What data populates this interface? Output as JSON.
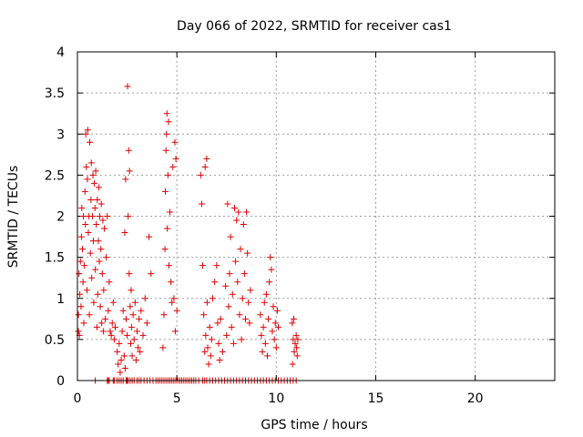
{
  "chart_data": {
    "type": "scatter",
    "title": "Day 066 of 2022, SRMTID for receiver cas1",
    "xlabel": "GPS time / hours",
    "ylabel": "SRMTID / TECUs",
    "xlim": [
      0,
      24
    ],
    "ylim": [
      0,
      4
    ],
    "xticks": [
      0,
      5,
      10,
      15,
      20
    ],
    "yticks": [
      0,
      0.5,
      1,
      1.5,
      2,
      2.5,
      3,
      3.5,
      4
    ],
    "ytick_labels": [
      "0",
      "0.5",
      "1",
      "1.5",
      "2",
      "2.5",
      "3",
      "3.5",
      "4"
    ],
    "grid": true,
    "marker": "+",
    "color": "#e00000",
    "series": [
      {
        "name": "SRMTID",
        "points": [
          [
            0.05,
            0.6
          ],
          [
            0.05,
            0.8
          ],
          [
            0.08,
            1.3
          ],
          [
            0.1,
            0.55
          ],
          [
            0.12,
            1.05
          ],
          [
            0.15,
            1.45
          ],
          [
            0.18,
            0.9
          ],
          [
            0.2,
            1.75
          ],
          [
            0.22,
            2.1
          ],
          [
            0.25,
            1.6
          ],
          [
            0.28,
            1.2
          ],
          [
            0.3,
            2.0
          ],
          [
            0.32,
            0.7
          ],
          [
            0.35,
            1.4
          ],
          [
            0.38,
            2.3
          ],
          [
            0.4,
            1.9
          ],
          [
            0.42,
            3.0
          ],
          [
            0.45,
            2.6
          ],
          [
            0.48,
            1.1
          ],
          [
            0.5,
            2.45
          ],
          [
            0.52,
            3.05
          ],
          [
            0.55,
            1.8
          ],
          [
            0.58,
            2.0
          ],
          [
            0.6,
            0.8
          ],
          [
            0.62,
            2.9
          ],
          [
            0.65,
            1.55
          ],
          [
            0.68,
            2.2
          ],
          [
            0.7,
            2.65
          ],
          [
            0.72,
            1.25
          ],
          [
            0.75,
            2.0
          ],
          [
            0.78,
            2.5
          ],
          [
            0.8,
            1.7
          ],
          [
            0.82,
            0.95
          ],
          [
            0.85,
            2.4
          ],
          [
            0.88,
            2.1
          ],
          [
            0.9,
            1.35
          ],
          [
            0.92,
            2.55
          ],
          [
            0.95,
            1.9
          ],
          [
            0.98,
            0.65
          ],
          [
            1.0,
            2.2
          ],
          [
            1.02,
            1.05
          ],
          [
            1.05,
            1.7
          ],
          [
            1.08,
            2.35
          ],
          [
            1.1,
            1.45
          ],
          [
            1.12,
            2.0
          ],
          [
            1.15,
            0.9
          ],
          [
            1.18,
            1.6
          ],
          [
            1.2,
            2.15
          ],
          [
            1.22,
            0.7
          ],
          [
            1.25,
            1.3
          ],
          [
            1.28,
            1.95
          ],
          [
            1.3,
            0.6
          ],
          [
            1.32,
            1.1
          ],
          [
            1.35,
            1.85
          ],
          [
            1.4,
            0.75
          ],
          [
            1.45,
            1.5
          ],
          [
            1.5,
            2.0
          ],
          [
            1.55,
            0.85
          ],
          [
            1.6,
            1.2
          ],
          [
            1.65,
            0.6
          ],
          [
            1.7,
            0.55
          ],
          [
            1.75,
            0.7
          ],
          [
            1.8,
            0.95
          ],
          [
            1.85,
            0.5
          ],
          [
            1.9,
            0.65
          ],
          [
            2.0,
            0.35
          ],
          [
            2.05,
            0.2
          ],
          [
            2.1,
            0.45
          ],
          [
            2.15,
            0.1
          ],
          [
            2.2,
            0.25
          ],
          [
            2.25,
            0.6
          ],
          [
            2.3,
            0.85
          ],
          [
            2.35,
            0.3
          ],
          [
            2.38,
            1.8
          ],
          [
            2.4,
            0.15
          ],
          [
            2.42,
            2.45
          ],
          [
            2.45,
            0.75
          ],
          [
            2.5,
            0.55
          ],
          [
            2.52,
            3.58
          ],
          [
            2.55,
            2.0
          ],
          [
            2.58,
            2.8
          ],
          [
            2.6,
            1.3
          ],
          [
            2.62,
            2.55
          ],
          [
            2.65,
            0.9
          ],
          [
            2.68,
            0.45
          ],
          [
            2.7,
            1.1
          ],
          [
            2.72,
            0.65
          ],
          [
            2.75,
            0.3
          ],
          [
            2.8,
            0.8
          ],
          [
            2.85,
            0.5
          ],
          [
            2.9,
            0.95
          ],
          [
            2.95,
            0.25
          ],
          [
            3.0,
            0.6
          ],
          [
            3.05,
            0.4
          ],
          [
            3.1,
            0.75
          ],
          [
            3.15,
            0.35
          ],
          [
            3.2,
            0.85
          ],
          [
            3.3,
            0.55
          ],
          [
            3.4,
            1.0
          ],
          [
            3.5,
            0.7
          ],
          [
            3.6,
            1.75
          ],
          [
            3.7,
            1.3
          ],
          [
            4.3,
            0.4
          ],
          [
            4.35,
            0.8
          ],
          [
            4.4,
            1.6
          ],
          [
            4.42,
            2.3
          ],
          [
            4.45,
            2.8
          ],
          [
            4.48,
            3.0
          ],
          [
            4.5,
            3.25
          ],
          [
            4.52,
            1.85
          ],
          [
            4.55,
            2.5
          ],
          [
            4.58,
            3.15
          ],
          [
            4.6,
            1.4
          ],
          [
            4.65,
            2.05
          ],
          [
            4.7,
            1.2
          ],
          [
            4.75,
            0.95
          ],
          [
            4.8,
            2.6
          ],
          [
            4.85,
            1.0
          ],
          [
            4.9,
            2.9
          ],
          [
            4.92,
            0.6
          ],
          [
            4.95,
            2.7
          ],
          [
            5.0,
            0.85
          ],
          [
            6.2,
            2.5
          ],
          [
            6.25,
            2.15
          ],
          [
            6.3,
            1.4
          ],
          [
            6.35,
            0.8
          ],
          [
            6.4,
            0.35
          ],
          [
            6.42,
            2.6
          ],
          [
            6.45,
            0.55
          ],
          [
            6.5,
            2.7
          ],
          [
            6.52,
            0.95
          ],
          [
            6.55,
            0.4
          ],
          [
            6.6,
            0.2
          ],
          [
            6.65,
            0.65
          ],
          [
            6.7,
            0.3
          ],
          [
            6.75,
            0.5
          ],
          [
            6.8,
            1.0
          ],
          [
            6.9,
            1.2
          ],
          [
            7.0,
            1.4
          ],
          [
            7.05,
            0.7
          ],
          [
            7.1,
            0.45
          ],
          [
            7.15,
            0.25
          ],
          [
            7.2,
            0.75
          ],
          [
            7.3,
            0.35
          ],
          [
            7.45,
            1.15
          ],
          [
            7.5,
            0.55
          ],
          [
            7.55,
            2.15
          ],
          [
            7.6,
            0.9
          ],
          [
            7.65,
            1.3
          ],
          [
            7.7,
            1.75
          ],
          [
            7.75,
            0.65
          ],
          [
            7.8,
            1.05
          ],
          [
            7.85,
            0.45
          ],
          [
            7.9,
            2.1
          ],
          [
            7.95,
            1.45
          ],
          [
            8.0,
            1.95
          ],
          [
            8.05,
            1.2
          ],
          [
            8.1,
            2.05
          ],
          [
            8.15,
            0.8
          ],
          [
            8.2,
            1.6
          ],
          [
            8.25,
            0.5
          ],
          [
            8.3,
            1.0
          ],
          [
            8.35,
            1.9
          ],
          [
            8.4,
            1.3
          ],
          [
            8.45,
            0.75
          ],
          [
            8.5,
            2.05
          ],
          [
            8.55,
            1.55
          ],
          [
            8.6,
            0.95
          ],
          [
            8.65,
            0.7
          ],
          [
            8.7,
            1.1
          ],
          [
            9.2,
            0.8
          ],
          [
            9.25,
            0.55
          ],
          [
            9.3,
            0.35
          ],
          [
            9.35,
            0.65
          ],
          [
            9.4,
            0.95
          ],
          [
            9.45,
            0.45
          ],
          [
            9.5,
            1.05
          ],
          [
            9.55,
            0.3
          ],
          [
            9.6,
            0.75
          ],
          [
            9.65,
            1.2
          ],
          [
            9.7,
            1.5
          ],
          [
            9.75,
            1.35
          ],
          [
            9.8,
            0.6
          ],
          [
            9.85,
            0.9
          ],
          [
            9.9,
            0.5
          ],
          [
            9.95,
            0.7
          ],
          [
            10.0,
            0.4
          ],
          [
            10.05,
            0.85
          ],
          [
            10.1,
            0.65
          ],
          [
            10.8,
            0.7
          ],
          [
            10.82,
            0.2
          ],
          [
            10.85,
            0.5
          ],
          [
            10.88,
            0.75
          ],
          [
            10.9,
            0.35
          ],
          [
            10.95,
            0.45
          ],
          [
            11.0,
            0.55
          ],
          [
            11.02,
            0.4
          ],
          [
            11.05,
            0.3
          ],
          [
            11.08,
            0.5
          ],
          [
            0.9,
            0.0
          ],
          [
            1.5,
            0.0
          ],
          [
            1.55,
            0.0
          ],
          [
            1.6,
            0.0
          ],
          [
            1.8,
            0.0
          ],
          [
            1.85,
            0.0
          ],
          [
            2.0,
            0.0
          ],
          [
            2.1,
            0.0
          ],
          [
            2.2,
            0.0
          ],
          [
            2.3,
            0.0
          ],
          [
            2.45,
            0.0
          ],
          [
            2.5,
            0.0
          ],
          [
            2.55,
            0.0
          ],
          [
            2.65,
            0.0
          ],
          [
            2.75,
            0.0
          ],
          [
            2.85,
            0.0
          ],
          [
            3.0,
            0.0
          ],
          [
            3.1,
            0.0
          ],
          [
            3.2,
            0.0
          ],
          [
            3.35,
            0.0
          ],
          [
            3.5,
            0.0
          ],
          [
            3.65,
            0.0
          ],
          [
            3.8,
            0.0
          ],
          [
            3.95,
            0.0
          ],
          [
            4.05,
            0.0
          ],
          [
            4.15,
            0.0
          ],
          [
            4.25,
            0.0
          ],
          [
            4.35,
            0.0
          ],
          [
            4.45,
            0.0
          ],
          [
            4.55,
            0.0
          ],
          [
            4.65,
            0.0
          ],
          [
            4.75,
            0.0
          ],
          [
            4.85,
            0.0
          ],
          [
            4.95,
            0.0
          ],
          [
            5.05,
            0.0
          ],
          [
            5.15,
            0.0
          ],
          [
            5.25,
            0.0
          ],
          [
            5.35,
            0.0
          ],
          [
            5.45,
            0.0
          ],
          [
            5.55,
            0.0
          ],
          [
            5.65,
            0.0
          ],
          [
            5.75,
            0.0
          ],
          [
            5.85,
            0.0
          ],
          [
            5.95,
            0.0
          ],
          [
            6.1,
            0.0
          ],
          [
            6.3,
            0.0
          ],
          [
            6.4,
            0.0
          ],
          [
            6.5,
            0.0
          ],
          [
            6.65,
            0.0
          ],
          [
            6.8,
            0.0
          ],
          [
            6.95,
            0.0
          ],
          [
            7.1,
            0.0
          ],
          [
            7.25,
            0.0
          ],
          [
            7.4,
            0.0
          ],
          [
            7.55,
            0.0
          ],
          [
            7.7,
            0.0
          ],
          [
            7.85,
            0.0
          ],
          [
            8.0,
            0.0
          ],
          [
            8.15,
            0.0
          ],
          [
            8.3,
            0.0
          ],
          [
            8.45,
            0.0
          ],
          [
            8.6,
            0.0
          ],
          [
            8.75,
            0.0
          ],
          [
            8.9,
            0.0
          ],
          [
            9.05,
            0.0
          ],
          [
            9.2,
            0.0
          ],
          [
            9.35,
            0.0
          ],
          [
            9.5,
            0.0
          ],
          [
            9.65,
            0.0
          ],
          [
            9.8,
            0.0
          ],
          [
            9.95,
            0.0
          ],
          [
            10.1,
            0.0
          ],
          [
            10.25,
            0.0
          ],
          [
            10.4,
            0.0
          ],
          [
            10.55,
            0.0
          ],
          [
            10.7,
            0.0
          ],
          [
            10.85,
            0.0
          ],
          [
            11.0,
            0.0
          ]
        ]
      }
    ]
  }
}
